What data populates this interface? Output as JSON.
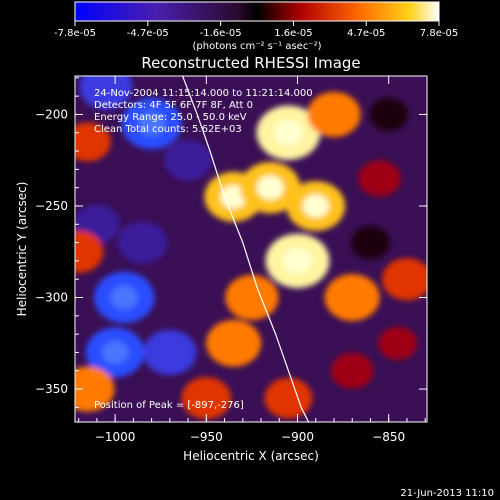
{
  "chart_data": {
    "type": "heatmap",
    "title": "Reconstructed RHESSI Image",
    "xlabel": "Heliocentric X (arcsec)",
    "ylabel": "Heliocentric Y (arcsec)",
    "xlim": [
      -1022,
      -829
    ],
    "ylim": [
      -368,
      -179
    ],
    "xticks": [
      -1000,
      -950,
      -900,
      -850
    ],
    "yticks": [
      -350,
      -300,
      -250,
      -200
    ],
    "colorbar": {
      "ticks": [
        "-7.8e-05",
        "-4.7e-05",
        "-1.6e-05",
        "1.6e-05",
        "4.7e-05",
        "7.8e-05"
      ],
      "units": "(photons cm⁻² s⁻¹ asec⁻²)",
      "range": [
        -7.8e-05,
        7.8e-05
      ]
    },
    "annotations": [
      "24-Nov-2004 11:15:14.000 to 11:21:14.000",
      "Detectors: 4F 5F 6F 7F 8F, Att 0",
      "Energy Range: 25.0 - 50.0 keV",
      "Clean     Total counts: 5.62E+03"
    ],
    "peak_label": "Position of Peak = [-897,-276]",
    "peak": [
      -897,
      -276
    ],
    "limb_curve": [
      [
        -963,
        -179
      ],
      [
        -955,
        -200
      ],
      [
        -948,
        -220
      ],
      [
        -940,
        -245
      ],
      [
        -930,
        -270
      ],
      [
        -922,
        -295
      ],
      [
        -912,
        -320
      ],
      [
        -905,
        -340
      ],
      [
        -898,
        -360
      ],
      [
        -894,
        -368
      ]
    ],
    "blobs": [
      {
        "x": -1005,
        "y": -185,
        "v": -0.7
      },
      {
        "x": -980,
        "y": -205,
        "v": -0.9
      },
      {
        "x": -1010,
        "y": -260,
        "v": -0.5
      },
      {
        "x": -995,
        "y": -300,
        "v": -0.9
      },
      {
        "x": -1000,
        "y": -330,
        "v": -0.85
      },
      {
        "x": -970,
        "y": -330,
        "v": -0.7
      },
      {
        "x": -985,
        "y": -270,
        "v": -0.6
      },
      {
        "x": -960,
        "y": -225,
        "v": -0.55
      },
      {
        "x": -1015,
        "y": -215,
        "v": 0.5
      },
      {
        "x": -1020,
        "y": -275,
        "v": 0.6
      },
      {
        "x": -1015,
        "y": -350,
        "v": 0.7
      },
      {
        "x": -950,
        "y": -355,
        "v": 0.6
      },
      {
        "x": -935,
        "y": -245,
        "v": 0.85
      },
      {
        "x": -905,
        "y": -210,
        "v": 1.0
      },
      {
        "x": -915,
        "y": -240,
        "v": 0.9
      },
      {
        "x": -890,
        "y": -250,
        "v": 0.85
      },
      {
        "x": -900,
        "y": -280,
        "v": 1.0
      },
      {
        "x": -870,
        "y": -300,
        "v": 0.75
      },
      {
        "x": -925,
        "y": -300,
        "v": 0.7
      },
      {
        "x": -935,
        "y": -325,
        "v": 0.75
      },
      {
        "x": -880,
        "y": -200,
        "v": 0.7
      },
      {
        "x": -855,
        "y": -235,
        "v": 0.4
      },
      {
        "x": -840,
        "y": -290,
        "v": 0.6
      },
      {
        "x": -845,
        "y": -325,
        "v": 0.3
      },
      {
        "x": -870,
        "y": -340,
        "v": 0.4
      },
      {
        "x": -905,
        "y": -355,
        "v": 0.55
      },
      {
        "x": -850,
        "y": -200,
        "v": -0.3
      },
      {
        "x": -860,
        "y": -270,
        "v": -0.3
      }
    ]
  },
  "footer": {
    "date": "21-Jun-2013 11:10"
  },
  "colors": {
    "background": "#000000",
    "text": "#ffffff"
  }
}
